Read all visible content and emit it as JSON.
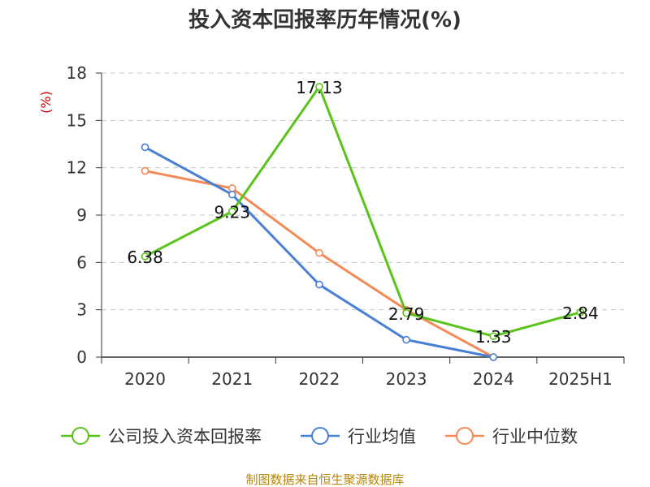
{
  "colors": {
    "company": "#5ac31a",
    "industry_avg": "#4a7fd6",
    "industry_median": "#f48a57",
    "grid": "#c8c8c8",
    "axis": "#333333",
    "ylabel": "#cc0000",
    "source": "#b8860b"
  },
  "footer": {
    "source": "制图数据来自恒生聚源数据库"
  },
  "chart_data": {
    "type": "line",
    "title": "投入资本回报率历年情况(%)",
    "xlabel": "",
    "ylabel": "(%)",
    "categories": [
      "2020",
      "2021",
      "2022",
      "2023",
      "2024",
      "2025H1"
    ],
    "ylim": [
      0,
      18
    ],
    "yticks": [
      0,
      3,
      6,
      9,
      12,
      15,
      18
    ],
    "grid": true,
    "legend_position": "bottom",
    "series": [
      {
        "name": "公司投入资本回报率",
        "color_key": "company",
        "values": [
          6.38,
          9.23,
          17.13,
          2.79,
          1.33,
          2.84
        ],
        "labels": [
          "6.38",
          "9.23",
          "17.13",
          "2.79",
          "1.33",
          "2.84"
        ]
      },
      {
        "name": "行业均值",
        "color_key": "industry_avg",
        "values": [
          13.3,
          10.3,
          4.6,
          1.1,
          0.0,
          null
        ]
      },
      {
        "name": "行业中位数",
        "color_key": "industry_median",
        "values": [
          11.8,
          10.7,
          6.6,
          3.0,
          0.0,
          null
        ]
      }
    ]
  }
}
